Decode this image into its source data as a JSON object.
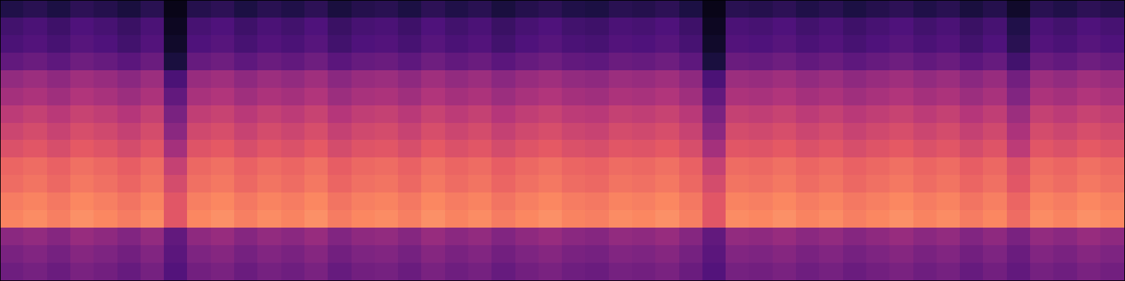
{
  "chart_data": {
    "type": "heatmap",
    "zlim": [
      0,
      100
    ],
    "tick_labels": false,
    "grid": false,
    "cells": [
      [
        14,
        16,
        13,
        17,
        15,
        12,
        16,
        4,
        15,
        17,
        13,
        16,
        14,
        17,
        12,
        15,
        16,
        13,
        17,
        14,
        16,
        12,
        15,
        17,
        14,
        13,
        16,
        15,
        17,
        13,
        4,
        16,
        15,
        17,
        14,
        16,
        13,
        15,
        17,
        14,
        16,
        12,
        15,
        8,
        16,
        14,
        17,
        15
      ],
      [
        22,
        24,
        21,
        25,
        23,
        20,
        24,
        6,
        23,
        25,
        21,
        24,
        22,
        25,
        20,
        23,
        24,
        21,
        25,
        22,
        24,
        20,
        23,
        25,
        22,
        21,
        24,
        23,
        25,
        21,
        6,
        24,
        23,
        25,
        22,
        24,
        21,
        23,
        25,
        22,
        24,
        20,
        23,
        14,
        24,
        22,
        25,
        23
      ],
      [
        24,
        26,
        23,
        27,
        25,
        22,
        26,
        8,
        25,
        27,
        23,
        26,
        24,
        27,
        22,
        25,
        26,
        23,
        27,
        24,
        26,
        22,
        25,
        27,
        24,
        23,
        26,
        25,
        27,
        23,
        8,
        26,
        25,
        27,
        24,
        26,
        23,
        25,
        27,
        24,
        26,
        22,
        25,
        16,
        26,
        24,
        27,
        25
      ],
      [
        30,
        32,
        29,
        33,
        31,
        28,
        32,
        12,
        31,
        33,
        29,
        32,
        30,
        33,
        28,
        31,
        32,
        29,
        33,
        30,
        32,
        28,
        31,
        33,
        30,
        29,
        32,
        31,
        33,
        29,
        12,
        32,
        31,
        33,
        30,
        32,
        29,
        31,
        33,
        30,
        32,
        28,
        31,
        22,
        32,
        30,
        33,
        31
      ],
      [
        42,
        44,
        41,
        45,
        43,
        40,
        44,
        24,
        43,
        45,
        41,
        44,
        42,
        45,
        40,
        43,
        44,
        41,
        45,
        42,
        44,
        40,
        43,
        45,
        42,
        41,
        44,
        43,
        45,
        41,
        24,
        44,
        43,
        45,
        42,
        44,
        41,
        43,
        45,
        42,
        44,
        40,
        43,
        34,
        44,
        42,
        45,
        43
      ],
      [
        46,
        48,
        45,
        49,
        47,
        44,
        48,
        30,
        47,
        49,
        45,
        48,
        46,
        49,
        44,
        47,
        48,
        45,
        49,
        46,
        48,
        44,
        47,
        49,
        46,
        45,
        48,
        47,
        49,
        45,
        30,
        48,
        47,
        49,
        46,
        48,
        45,
        47,
        49,
        46,
        48,
        44,
        47,
        38,
        48,
        46,
        49,
        47
      ],
      [
        52,
        54,
        51,
        55,
        53,
        50,
        54,
        36,
        53,
        55,
        51,
        54,
        52,
        55,
        50,
        53,
        54,
        51,
        55,
        52,
        54,
        50,
        53,
        55,
        52,
        51,
        54,
        53,
        55,
        51,
        36,
        54,
        53,
        55,
        52,
        54,
        51,
        53,
        55,
        52,
        54,
        50,
        53,
        44,
        54,
        52,
        55,
        53
      ],
      [
        56,
        58,
        55,
        59,
        57,
        54,
        58,
        40,
        57,
        59,
        55,
        58,
        56,
        59,
        54,
        57,
        58,
        55,
        59,
        56,
        58,
        54,
        57,
        59,
        56,
        55,
        58,
        57,
        59,
        55,
        40,
        58,
        57,
        59,
        56,
        58,
        55,
        57,
        59,
        56,
        58,
        54,
        57,
        48,
        58,
        56,
        59,
        57
      ],
      [
        60,
        62,
        59,
        63,
        61,
        58,
        62,
        46,
        61,
        63,
        59,
        62,
        60,
        63,
        58,
        61,
        62,
        59,
        63,
        60,
        62,
        58,
        61,
        63,
        60,
        59,
        62,
        61,
        63,
        59,
        46,
        62,
        61,
        63,
        60,
        62,
        59,
        61,
        63,
        60,
        62,
        58,
        61,
        52,
        62,
        60,
        63,
        61
      ],
      [
        66,
        68,
        65,
        69,
        67,
        64,
        68,
        54,
        67,
        69,
        65,
        68,
        66,
        69,
        64,
        67,
        68,
        65,
        69,
        66,
        68,
        64,
        67,
        69,
        66,
        65,
        68,
        67,
        69,
        65,
        54,
        68,
        67,
        69,
        66,
        68,
        65,
        67,
        69,
        66,
        68,
        64,
        67,
        60,
        68,
        66,
        69,
        67
      ],
      [
        68,
        70,
        67,
        71,
        69,
        66,
        70,
        58,
        69,
        71,
        67,
        70,
        68,
        71,
        66,
        69,
        70,
        67,
        71,
        68,
        70,
        66,
        69,
        71,
        68,
        67,
        70,
        69,
        71,
        67,
        58,
        70,
        69,
        71,
        68,
        70,
        67,
        69,
        71,
        68,
        70,
        66,
        69,
        62,
        70,
        68,
        71,
        69
      ],
      [
        72,
        74,
        71,
        75,
        73,
        70,
        74,
        62,
        73,
        75,
        71,
        74,
        72,
        75,
        70,
        73,
        74,
        71,
        75,
        72,
        74,
        70,
        73,
        75,
        72,
        71,
        74,
        73,
        75,
        71,
        62,
        74,
        73,
        75,
        72,
        74,
        71,
        73,
        75,
        72,
        74,
        70,
        73,
        66,
        74,
        72,
        75,
        73
      ],
      [
        74,
        76,
        73,
        77,
        75,
        72,
        76,
        62,
        75,
        77,
        73,
        76,
        74,
        77,
        72,
        75,
        76,
        73,
        77,
        74,
        76,
        72,
        75,
        77,
        74,
        73,
        76,
        75,
        77,
        73,
        62,
        76,
        75,
        77,
        74,
        76,
        73,
        75,
        77,
        74,
        76,
        72,
        75,
        68,
        76,
        74,
        77,
        75
      ],
      [
        40,
        42,
        39,
        43,
        41,
        38,
        42,
        30,
        41,
        43,
        39,
        42,
        40,
        43,
        38,
        41,
        42,
        39,
        43,
        40,
        42,
        38,
        41,
        43,
        40,
        39,
        42,
        41,
        43,
        39,
        30,
        42,
        41,
        43,
        40,
        42,
        39,
        41,
        43,
        40,
        42,
        38,
        41,
        36,
        42,
        40,
        43,
        41
      ],
      [
        36,
        38,
        35,
        39,
        37,
        34,
        38,
        28,
        37,
        39,
        35,
        38,
        36,
        39,
        34,
        37,
        38,
        35,
        39,
        36,
        38,
        34,
        37,
        39,
        36,
        35,
        38,
        37,
        39,
        35,
        28,
        38,
        37,
        39,
        36,
        38,
        35,
        37,
        39,
        36,
        38,
        34,
        37,
        32,
        38,
        36,
        39,
        37
      ],
      [
        33,
        35,
        32,
        36,
        34,
        31,
        35,
        26,
        34,
        36,
        32,
        35,
        33,
        36,
        31,
        34,
        35,
        32,
        36,
        33,
        35,
        31,
        34,
        36,
        33,
        32,
        35,
        34,
        36,
        32,
        26,
        35,
        34,
        36,
        33,
        35,
        32,
        34,
        36,
        33,
        35,
        31,
        34,
        30,
        35,
        33,
        36,
        34
      ]
    ]
  }
}
